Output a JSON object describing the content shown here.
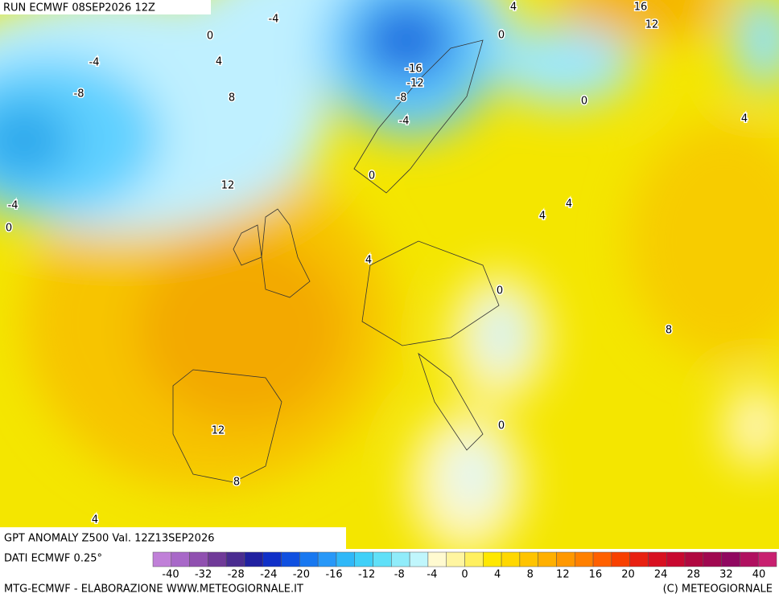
{
  "header": {
    "run": "RUN ECMWF 08SEP2026 12Z"
  },
  "map": {
    "title": "GPT ANOMALY Z500 Val. 12Z13SEP2026",
    "contour_labels": [
      -4,
      4,
      16,
      12,
      0,
      0,
      -4,
      4,
      -16,
      -12,
      -8,
      -8,
      0,
      8,
      -4,
      4,
      0,
      12,
      4,
      4,
      -4,
      0,
      4,
      0,
      8,
      0,
      12,
      8,
      4
    ]
  },
  "legend": {
    "source": "DATI ECMWF 0.25°",
    "labels": [
      -40,
      -32,
      -28,
      -24,
      -20,
      -16,
      -12,
      -8,
      -4,
      0,
      4,
      8,
      12,
      16,
      20,
      24,
      28,
      32,
      40
    ]
  },
  "footer": {
    "credit": "MTG-ECMWF - ELABORAZIONE WWW.METEOGIORNALE.IT",
    "copyright": "(C) METEOGIORNALE"
  }
}
